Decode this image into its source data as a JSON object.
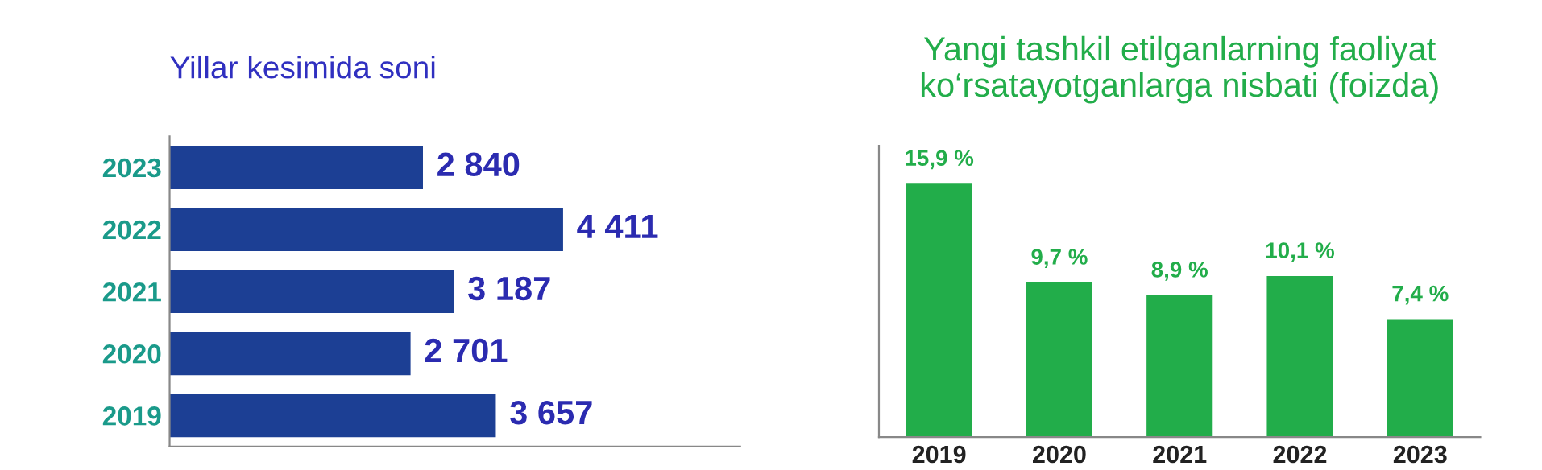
{
  "chart_data": [
    {
      "type": "bar",
      "title": "Yillar kesimida soni",
      "orientation": "horizontal",
      "categories": [
        "2023",
        "2022",
        "2021",
        "2020",
        "2019"
      ],
      "values": [
        2840,
        4411,
        3187,
        2701,
        3657
      ],
      "value_labels": [
        "2 840",
        "4 411",
        "3 187",
        "2 701",
        "3 657"
      ],
      "color": "#1c3f94",
      "tick_labels": "y",
      "grid": false,
      "legend": false
    },
    {
      "type": "bar",
      "title": "Yangi tashkil etilganlarning faoliyat\nko‘rsatayotganlarga nisbati (foizda)",
      "categories": [
        "2019",
        "2020",
        "2021",
        "2022",
        "2023"
      ],
      "values": [
        15.9,
        9.7,
        8.9,
        10.1,
        7.4
      ],
      "value_labels": [
        "15,9 %",
        "9,7 %",
        "8,9 %",
        "10,1 %",
        "7,4 %"
      ],
      "color": "#22ad4a",
      "tick_labels": "x",
      "grid": false,
      "legend": false
    }
  ]
}
